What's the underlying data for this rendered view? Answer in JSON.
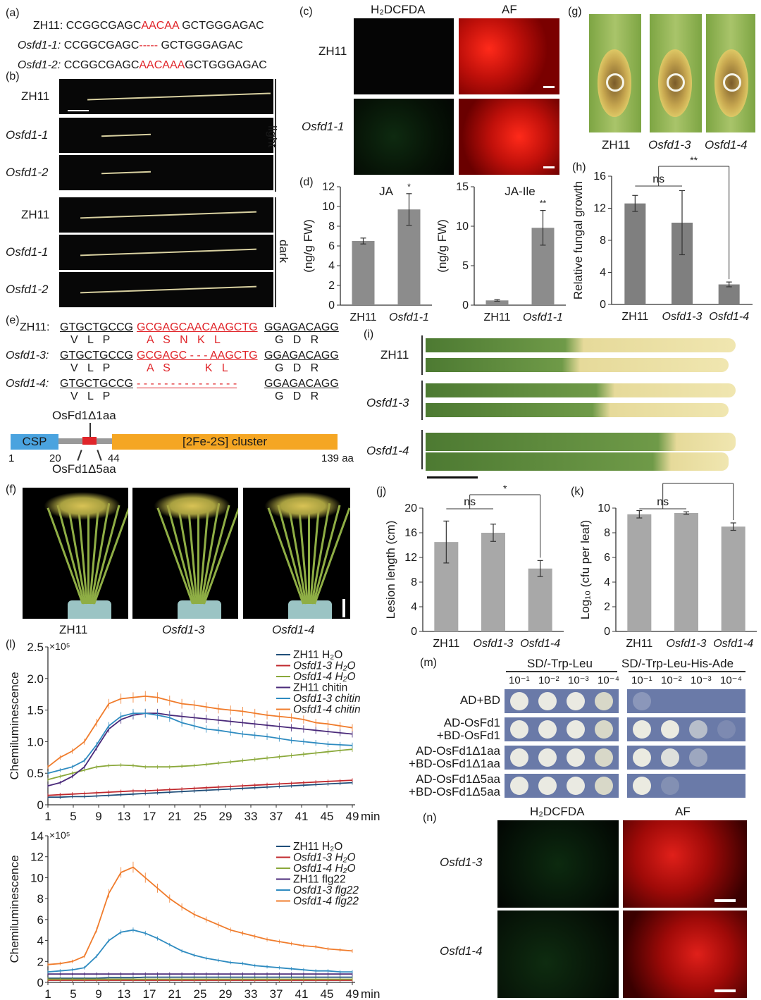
{
  "panels": {
    "a": {
      "tag": "(a)",
      "rows": [
        {
          "label": "ZH11:",
          "pre": "CCGGCGAGC",
          "mid": "AACAA",
          "post": " GCTGGGAGAC",
          "italic": false
        },
        {
          "label": "Osfd1-1:",
          "pre": "CCGGCGAGC",
          "mid": "-----",
          "post": " GCTGGGAGAC",
          "italic": true
        },
        {
          "label": "Osfd1-2:",
          "pre": "CCGGCGAGC",
          "mid": "AACAAA",
          "post": "GCTGGGAGAC",
          "italic": true
        }
      ]
    },
    "b": {
      "tag": "(b)",
      "rows": [
        "ZH11",
        "Osfd1-1",
        "Osfd1-2",
        "ZH11",
        "Osfd1-1",
        "Osfd1-2"
      ],
      "light": "light",
      "dark": "dark"
    },
    "c": {
      "tag": "(c)",
      "col1": "H₂DCFDA",
      "col2": "AF",
      "row1": "ZH11",
      "row2": "Osfd1-1"
    },
    "d": {
      "tag": "(d)",
      "ylabel": "(ng/g FW)",
      "chart_data": [
        {
          "type": "bar",
          "title": "JA",
          "categories": [
            "ZH11",
            "Osfd1-1"
          ],
          "values": [
            6.5,
            9.7
          ],
          "errors": [
            0.3,
            1.6
          ],
          "ylim": [
            0,
            12
          ],
          "yticks": [
            "0",
            "2",
            "4",
            "6",
            "8",
            "10",
            "12"
          ],
          "sig": "*",
          "ylabel": "(ng/g FW)"
        },
        {
          "type": "bar",
          "title": "JA-Ile",
          "categories": [
            "ZH11",
            "Osfd1-1"
          ],
          "values": [
            0.6,
            9.8
          ],
          "errors": [
            0.1,
            2.2
          ],
          "ylim": [
            0,
            15
          ],
          "yticks": [
            "0",
            "5",
            "10",
            "15"
          ],
          "sig": "**",
          "ylabel": "(ng/g FW)"
        }
      ]
    },
    "e": {
      "tag": "(e)",
      "rows": [
        {
          "label": "ZH11:",
          "black1": "GTGCTGCCG",
          "red": "GCGAGCAACAAGCTG",
          "black2": "GGAGACAGG",
          "aa1": "V   L   P",
          "aa_red": "A   S   N   K   L",
          "aa2": "G   D   R"
        },
        {
          "label": "Osfd1-3:",
          "black1": "GTGCTGCCG",
          "red": "GCGAGC - - - AAGCTG",
          "black2": "GGAGACAGG",
          "aa1": "V   L   P",
          "aa_red": "A   S           K   L",
          "aa2": "G   D   R"
        },
        {
          "label": "Osfd1-4:",
          "black1": "GTGCTGCCG",
          "red": "- - - - - - - - - - - - - - -",
          "black2": "GGAGACAGG",
          "aa1": "V   L   P",
          "aa_red": "",
          "aa2": "G   D   R"
        }
      ],
      "domain": {
        "csp": "CSP",
        "cluster": "[2Fe-2S] cluster",
        "top_label": "OsFd1Δ1aa",
        "bottom_label": "OsFd1Δ5aa",
        "pos1": "1",
        "pos20": "20",
        "pos44": "44",
        "pos139": "139 aa"
      }
    },
    "f": {
      "tag": "(f)",
      "labels": [
        "ZH11",
        "Osfd1-3",
        "Osfd1-4"
      ]
    },
    "g": {
      "tag": "(g)",
      "labels": [
        "ZH11",
        "Osfd1-3",
        "Osfd1-4"
      ]
    },
    "h": {
      "tag": "(h)",
      "chart_data": {
        "type": "bar",
        "categories": [
          "ZH11",
          "Osfd1-3",
          "Osfd1-4"
        ],
        "values": [
          12.6,
          10.2,
          2.5
        ],
        "errors": [
          1.0,
          4.0,
          0.3
        ],
        "ylim": [
          0,
          16
        ],
        "yticks": [
          "0",
          "4",
          "8",
          "12",
          "16"
        ],
        "ylabel": "Relative fungal growth",
        "sig_ns": "ns",
        "sig": "**"
      }
    },
    "i": {
      "tag": "(i)",
      "labels": [
        "ZH11",
        "Osfd1-3",
        "Osfd1-4"
      ]
    },
    "j": {
      "tag": "(j)",
      "chart_data": {
        "type": "bar",
        "categories": [
          "ZH11",
          "Osfd1-3",
          "Osfd1-4"
        ],
        "values": [
          14.5,
          16.0,
          10.2
        ],
        "errors": [
          3.4,
          1.4,
          1.3
        ],
        "ylim": [
          0,
          20
        ],
        "yticks": [
          "0",
          "4",
          "8",
          "12",
          "16",
          "20"
        ],
        "ylabel": "Lesion length (cm)",
        "sig_ns": "ns",
        "sig": "*"
      }
    },
    "k": {
      "tag": "(k)",
      "chart_data": {
        "type": "bar",
        "categories": [
          "ZH11",
          "Osfd1-3",
          "Osfd1-4"
        ],
        "values": [
          9.5,
          9.6,
          8.5
        ],
        "errors": [
          0.3,
          0.1,
          0.3
        ],
        "ylim": [
          0,
          10
        ],
        "yticks": [
          "0",
          "2",
          "4",
          "6",
          "8",
          "10"
        ],
        "ylabel": "Log₁₀ (cfu per leaf)",
        "sig_ns": "ns",
        "sig": "*"
      }
    },
    "l": {
      "tag": "(l)",
      "chart_data": [
        {
          "type": "line",
          "exponent": "×10⁵",
          "ylabel": "Chemiluminescence",
          "xunit": "min",
          "xticks": [
            "1",
            "5",
            "9",
            "13",
            "17",
            "21",
            "25",
            "29",
            "33",
            "37",
            "41",
            "45",
            "49"
          ],
          "ylim": [
            0,
            2.5
          ],
          "yticks": [
            "0",
            "0.5",
            "1.0",
            "1.5",
            "2.0",
            "2.5"
          ],
          "series": [
            {
              "name": "ZH11 H₂O",
              "color": "#1f4e79",
              "values": [
                0.12,
                0.12,
                0.13,
                0.13,
                0.14,
                0.15,
                0.16,
                0.17,
                0.18,
                0.19,
                0.2,
                0.21,
                0.22,
                0.23,
                0.24,
                0.25,
                0.26,
                0.27,
                0.28,
                0.29,
                0.3,
                0.31,
                0.32,
                0.33,
                0.34,
                0.35
              ]
            },
            {
              "name": "Osfd1-3 H₂O",
              "color": "#c0282d",
              "values": [
                0.15,
                0.16,
                0.17,
                0.18,
                0.19,
                0.2,
                0.21,
                0.22,
                0.22,
                0.23,
                0.24,
                0.25,
                0.26,
                0.27,
                0.28,
                0.29,
                0.3,
                0.31,
                0.32,
                0.33,
                0.34,
                0.35,
                0.36,
                0.37,
                0.38,
                0.39
              ]
            },
            {
              "name": "Osfd1-4 H₂O",
              "color": "#8aa83a",
              "values": [
                0.4,
                0.45,
                0.5,
                0.55,
                0.6,
                0.62,
                0.63,
                0.62,
                0.6,
                0.6,
                0.6,
                0.61,
                0.62,
                0.64,
                0.66,
                0.68,
                0.7,
                0.72,
                0.74,
                0.76,
                0.78,
                0.8,
                0.82,
                0.84,
                0.86,
                0.88
              ]
            },
            {
              "name": "ZH11 chitin",
              "color": "#4a2a7a",
              "values": [
                0.3,
                0.35,
                0.45,
                0.6,
                0.9,
                1.2,
                1.35,
                1.42,
                1.45,
                1.45,
                1.42,
                1.4,
                1.38,
                1.36,
                1.34,
                1.32,
                1.3,
                1.28,
                1.26,
                1.24,
                1.22,
                1.2,
                1.18,
                1.16,
                1.14,
                1.12
              ]
            },
            {
              "name": "Osfd1-3 chitin",
              "color": "#2e8bc0",
              "values": [
                0.5,
                0.55,
                0.6,
                0.7,
                0.95,
                1.25,
                1.4,
                1.45,
                1.45,
                1.42,
                1.38,
                1.3,
                1.25,
                1.2,
                1.18,
                1.15,
                1.12,
                1.1,
                1.08,
                1.05,
                1.02,
                1.0,
                0.98,
                0.96,
                0.95,
                0.94
              ]
            },
            {
              "name": "Osfd1-4 chitin",
              "color": "#f07c2c",
              "values": [
                0.6,
                0.75,
                0.85,
                1.0,
                1.3,
                1.6,
                1.68,
                1.7,
                1.72,
                1.7,
                1.65,
                1.6,
                1.58,
                1.55,
                1.52,
                1.5,
                1.48,
                1.45,
                1.42,
                1.4,
                1.38,
                1.35,
                1.3,
                1.28,
                1.25,
                1.22
              ]
            }
          ]
        },
        {
          "type": "line",
          "exponent": "×10⁵",
          "ylabel": "Chemiluminescence",
          "xunit": "min",
          "xticks": [
            "1",
            "5",
            "9",
            "13",
            "17",
            "21",
            "25",
            "29",
            "33",
            "37",
            "41",
            "45",
            "49"
          ],
          "ylim": [
            0,
            14
          ],
          "yticks": [
            "0",
            "2",
            "4",
            "6",
            "8",
            "10",
            "12",
            "14"
          ],
          "series": [
            {
              "name": "ZH11 H₂O",
              "color": "#1f4e79",
              "values": [
                0.4,
                0.4,
                0.4,
                0.4,
                0.4,
                0.45,
                0.45,
                0.45,
                0.5,
                0.5,
                0.5,
                0.5,
                0.5,
                0.5,
                0.5,
                0.5,
                0.5,
                0.5,
                0.5,
                0.5,
                0.5,
                0.5,
                0.5,
                0.5,
                0.5,
                0.5
              ]
            },
            {
              "name": "Osfd1-3 H₂O",
              "color": "#c0282d",
              "values": [
                0.2,
                0.2,
                0.2,
                0.2,
                0.2,
                0.2,
                0.2,
                0.2,
                0.2,
                0.2,
                0.2,
                0.2,
                0.2,
                0.2,
                0.2,
                0.2,
                0.2,
                0.2,
                0.2,
                0.2,
                0.2,
                0.2,
                0.2,
                0.2,
                0.2,
                0.2
              ]
            },
            {
              "name": "Osfd1-4 H₂O",
              "color": "#8aa83a",
              "values": [
                0.3,
                0.3,
                0.3,
                0.3,
                0.3,
                0.3,
                0.3,
                0.3,
                0.3,
                0.3,
                0.3,
                0.3,
                0.3,
                0.3,
                0.3,
                0.3,
                0.3,
                0.3,
                0.3,
                0.3,
                0.3,
                0.3,
                0.3,
                0.3,
                0.3,
                0.3
              ]
            },
            {
              "name": "ZH11 flg22",
              "color": "#4a2a7a",
              "values": [
                0.8,
                0.8,
                0.8,
                0.8,
                0.8,
                0.8,
                0.8,
                0.8,
                0.8,
                0.8,
                0.8,
                0.8,
                0.8,
                0.8,
                0.8,
                0.8,
                0.8,
                0.8,
                0.8,
                0.8,
                0.8,
                0.8,
                0.8,
                0.8,
                0.8,
                0.8
              ]
            },
            {
              "name": "Osfd1-3 flg22",
              "color": "#2e8bc0",
              "values": [
                1.0,
                1.1,
                1.2,
                1.4,
                2.5,
                4.0,
                4.8,
                5.0,
                4.7,
                4.2,
                3.6,
                3.0,
                2.6,
                2.3,
                2.1,
                1.9,
                1.8,
                1.6,
                1.5,
                1.4,
                1.3,
                1.2,
                1.1,
                1.1,
                1.0,
                1.0
              ]
            },
            {
              "name": "Osfd1-4 flg22",
              "color": "#f07c2c",
              "values": [
                1.7,
                1.8,
                2.0,
                2.5,
                5.0,
                8.5,
                10.5,
                11.0,
                10.0,
                9.0,
                8.0,
                7.2,
                6.5,
                6.0,
                5.5,
                5.0,
                4.7,
                4.4,
                4.1,
                3.9,
                3.7,
                3.5,
                3.4,
                3.2,
                3.1,
                3.0
              ]
            }
          ]
        }
      ]
    },
    "m": {
      "tag": "(m)",
      "media1": "SD/-Trp-Leu",
      "media2": "SD/-Trp-Leu-His-Ade",
      "dilutions": [
        "10⁻¹",
        "10⁻²",
        "10⁻³",
        "10⁻⁴"
      ],
      "rows": [
        {
          "l1": "AD+BD",
          "l2": ""
        },
        {
          "l1": "AD-OsFd1",
          "l2": "+BD-OsFd1"
        },
        {
          "l1": "AD-OsFd1Δ1aa",
          "l2": "+BD-OsFd1Δ1aa"
        },
        {
          "l1": "AD-OsFd1Δ5aa",
          "l2": "+BD-OsFd1Δ5aa"
        }
      ]
    },
    "n": {
      "tag": "(n)",
      "col1": "H₂DCFDA",
      "col2": "AF",
      "row1": "Osfd1-3",
      "row2": "Osfd1-4"
    }
  }
}
